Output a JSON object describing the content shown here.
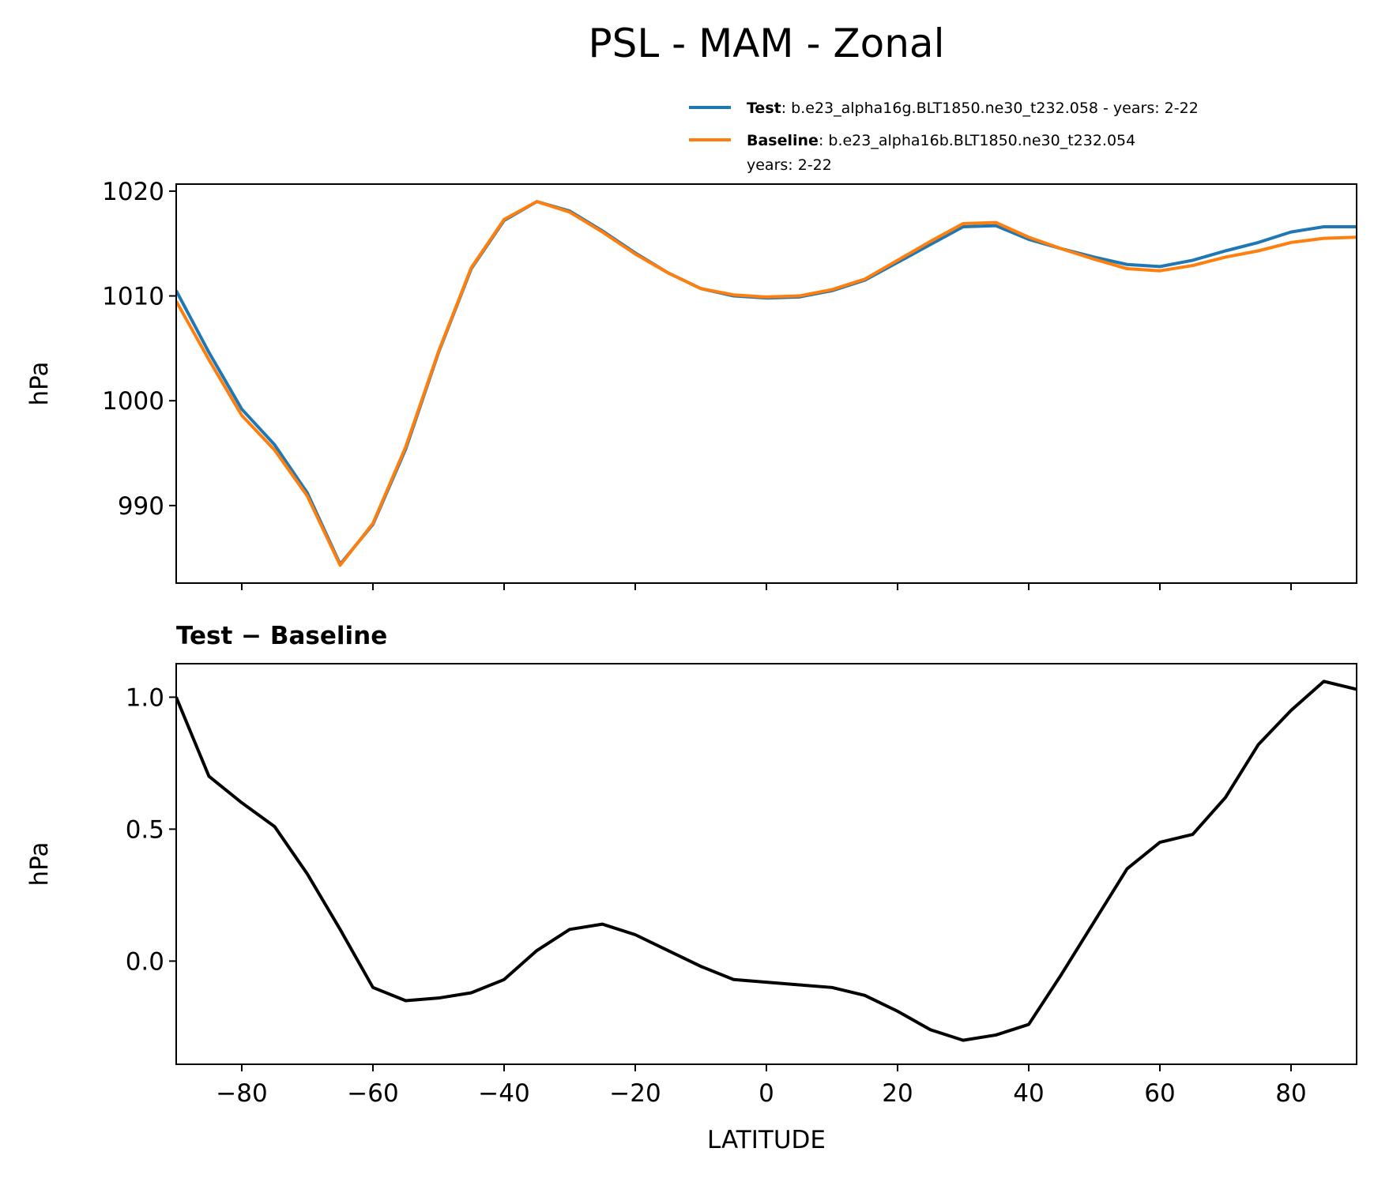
{
  "title": "PSL - MAM - Zonal",
  "chart_data": [
    {
      "type": "line",
      "x": [
        -90,
        -85,
        -80,
        -75,
        -70,
        -65,
        -60,
        -55,
        -50,
        -45,
        -40,
        -35,
        -30,
        -25,
        -20,
        -15,
        -10,
        -5,
        0,
        5,
        10,
        15,
        20,
        25,
        30,
        35,
        40,
        45,
        50,
        55,
        60,
        65,
        70,
        75,
        80,
        85,
        90
      ],
      "series": [
        {
          "name": "Test",
          "description": [
            ": b.e23_alpha16g.BLT1850.ne30_t232.058 - years: 2-22"
          ],
          "color": "#1f77b4",
          "values": [
            1010.5,
            1004.6,
            999.2,
            995.8,
            991.2,
            984.4,
            988.2,
            995.4,
            1004.6,
            1012.6,
            1017.2,
            1019.0,
            1018.1,
            1016.2,
            1014.1,
            1012.2,
            1010.7,
            1010.0,
            1009.8,
            1009.9,
            1010.5,
            1011.5,
            1013.2,
            1014.9,
            1016.6,
            1016.7,
            1015.4,
            1014.5,
            1013.7,
            1013.0,
            1012.8,
            1013.4,
            1014.3,
            1015.1,
            1016.1,
            1016.6,
            1016.6
          ]
        },
        {
          "name": "Baseline",
          "description": [
            ": b.e23_alpha16b.BLT1850.ne30_t232.054",
            "years: 2-22"
          ],
          "color": "#ff7f0e",
          "values": [
            1009.5,
            1003.9,
            998.6,
            995.3,
            990.9,
            984.3,
            988.3,
            995.6,
            1004.7,
            1012.7,
            1017.3,
            1019.0,
            1018.0,
            1016.1,
            1014.0,
            1012.2,
            1010.7,
            1010.1,
            1009.9,
            1010.0,
            1010.6,
            1011.6,
            1013.4,
            1015.2,
            1016.9,
            1017.0,
            1015.6,
            1014.5,
            1013.5,
            1012.6,
            1012.4,
            1012.9,
            1013.7,
            1014.3,
            1015.1,
            1015.5,
            1015.6
          ]
        }
      ],
      "ylabel": "hPa",
      "xlim": [
        -90,
        90
      ],
      "xticks": [
        -80,
        -60,
        -40,
        -20,
        0,
        20,
        40,
        60,
        80
      ],
      "ylim": [
        982.6,
        1020.67
      ],
      "yticks": [
        990,
        1000,
        1010,
        1020
      ]
    },
    {
      "type": "line",
      "title": "Test − Baseline",
      "x": [
        -90,
        -85,
        -80,
        -75,
        -70,
        -65,
        -60,
        -55,
        -50,
        -45,
        -40,
        -35,
        -30,
        -25,
        -20,
        -15,
        -10,
        -5,
        0,
        5,
        10,
        15,
        20,
        25,
        30,
        35,
        40,
        45,
        50,
        55,
        60,
        65,
        70,
        75,
        80,
        85,
        90
      ],
      "series": [
        {
          "color": "#000000",
          "values": [
            1.0,
            0.7,
            0.6,
            0.51,
            0.33,
            0.12,
            -0.1,
            -0.15,
            -0.14,
            -0.12,
            -0.07,
            0.04,
            0.12,
            0.14,
            0.1,
            0.04,
            -0.02,
            -0.07,
            -0.08,
            -0.09,
            -0.1,
            -0.13,
            -0.19,
            -0.26,
            -0.3,
            -0.28,
            -0.24,
            -0.05,
            0.15,
            0.35,
            0.45,
            0.48,
            0.62,
            0.82,
            0.95,
            1.06,
            1.03
          ]
        }
      ],
      "ylabel": "hPa",
      "xlabel": "LATITUDE",
      "xlim": [
        -90,
        90
      ],
      "xticks": [
        {
          "value": -80,
          "label": "−80"
        },
        {
          "value": -60,
          "label": "−60"
        },
        {
          "value": -40,
          "label": "−40"
        },
        {
          "value": -20,
          "label": "−20"
        },
        0,
        20,
        40,
        60,
        80
      ],
      "ylim": [
        -0.391,
        1.127
      ],
      "yticks": [
        {
          "value": 0,
          "label": "0.0"
        },
        {
          "value": 0.5,
          "label": "0.5"
        },
        {
          "value": 1,
          "label": "1.0"
        }
      ]
    }
  ]
}
